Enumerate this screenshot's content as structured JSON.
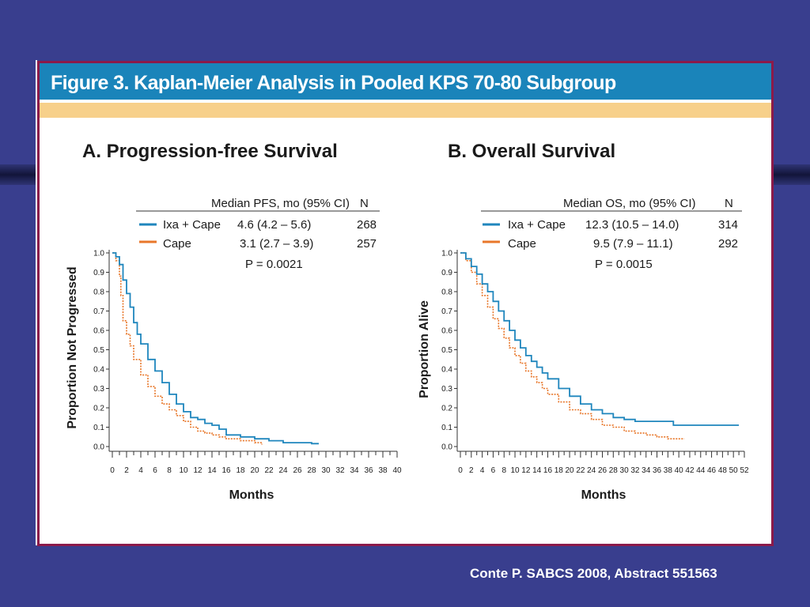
{
  "figure_title": "Figure 3. Kaplan-Meier Analysis in Pooled KPS 70-80 Subgroup",
  "footer": "Conte P. SABCS 2008, Abstract 551563",
  "colors": {
    "ixa": "#1f86bd",
    "cape": "#e8772a",
    "header": "#1a84ba",
    "stripe": "#f7d08a",
    "border": "#8b1a4a",
    "background": "#393e8e"
  },
  "chart_data": [
    {
      "type": "line",
      "title": "A. Progression-free Survival",
      "xlabel": "Months",
      "ylabel": "Proportion Not Progressed",
      "xlim": [
        0,
        40
      ],
      "ylim": [
        0,
        1.0
      ],
      "x_ticks": [
        0,
        2,
        4,
        6,
        8,
        10,
        12,
        14,
        16,
        18,
        20,
        22,
        24,
        26,
        28,
        30,
        32,
        34,
        36,
        38,
        40
      ],
      "y_ticks": [
        "0.0",
        "0.1",
        "0.2",
        "0.3",
        "0.4",
        "0.5",
        "0.6",
        "0.7",
        "0.8",
        "0.9",
        "1.0"
      ],
      "legend": {
        "header": {
          "measure": "Median PFS, mo (95% CI)",
          "n": "N"
        },
        "rows": [
          {
            "name": "Ixa + Cape",
            "median": "4.6 (4.2 – 5.6)",
            "n": "268",
            "color": "#1f86bd"
          },
          {
            "name": "Cape",
            "median": "3.1 (2.7 – 3.9)",
            "n": "257",
            "color": "#e8772a"
          }
        ],
        "p_value": "P = 0.0021"
      },
      "series": [
        {
          "name": "Ixa + Cape",
          "style": "solid",
          "x": [
            0,
            0.5,
            1,
            1.5,
            2,
            2.5,
            3,
            3.5,
            4,
            5,
            6,
            7,
            8,
            9,
            10,
            11,
            12,
            13,
            14,
            15,
            16,
            18,
            20,
            22,
            24,
            26,
            28,
            29
          ],
          "y": [
            1.0,
            0.98,
            0.94,
            0.86,
            0.79,
            0.72,
            0.64,
            0.58,
            0.53,
            0.45,
            0.39,
            0.33,
            0.27,
            0.22,
            0.18,
            0.15,
            0.14,
            0.12,
            0.11,
            0.09,
            0.06,
            0.05,
            0.04,
            0.03,
            0.02,
            0.02,
            0.015,
            0.015
          ]
        },
        {
          "name": "Cape",
          "style": "dotted",
          "x": [
            0,
            0.5,
            1,
            1.2,
            1.5,
            2,
            2.5,
            3,
            4,
            5,
            6,
            7,
            8,
            9,
            10,
            11,
            12,
            13,
            14,
            15,
            16,
            18,
            20,
            21
          ],
          "y": [
            1.0,
            0.96,
            0.88,
            0.78,
            0.65,
            0.58,
            0.52,
            0.45,
            0.37,
            0.31,
            0.26,
            0.22,
            0.19,
            0.16,
            0.13,
            0.1,
            0.08,
            0.07,
            0.06,
            0.05,
            0.04,
            0.03,
            0.02,
            0.01
          ]
        }
      ]
    },
    {
      "type": "line",
      "title": "B. Overall Survival",
      "xlabel": "Months",
      "ylabel": "Proportion Alive",
      "xlim": [
        0,
        52
      ],
      "ylim": [
        0,
        1.0
      ],
      "x_ticks": [
        0,
        2,
        4,
        6,
        8,
        10,
        12,
        14,
        16,
        18,
        20,
        22,
        24,
        26,
        28,
        30,
        32,
        34,
        36,
        38,
        40,
        42,
        44,
        46,
        48,
        50,
        52
      ],
      "y_ticks": [
        "0.0",
        "0.1",
        "0.2",
        "0.3",
        "0.4",
        "0.5",
        "0.6",
        "0.7",
        "0.8",
        "0.9",
        "1.0"
      ],
      "legend": {
        "header": {
          "measure": "Median OS, mo (95% CI)",
          "n": "N"
        },
        "rows": [
          {
            "name": "Ixa + Cape",
            "median": "12.3 (10.5 – 14.0)",
            "n": "314",
            "color": "#1f86bd"
          },
          {
            "name": "Cape",
            "median": "9.5 (7.9 – 11.1)",
            "n": "292",
            "color": "#e8772a"
          }
        ],
        "p_value": "P = 0.0015"
      },
      "series": [
        {
          "name": "Ixa + Cape",
          "style": "solid",
          "x": [
            0,
            1,
            2,
            3,
            4,
            5,
            6,
            7,
            8,
            9,
            10,
            11,
            12,
            13,
            14,
            15,
            16,
            18,
            20,
            22,
            24,
            26,
            28,
            30,
            32,
            34,
            36,
            38,
            39,
            40,
            44,
            48,
            51
          ],
          "y": [
            1.0,
            0.97,
            0.93,
            0.89,
            0.84,
            0.8,
            0.75,
            0.7,
            0.65,
            0.6,
            0.55,
            0.51,
            0.47,
            0.44,
            0.41,
            0.38,
            0.35,
            0.3,
            0.26,
            0.22,
            0.19,
            0.17,
            0.15,
            0.14,
            0.13,
            0.13,
            0.13,
            0.13,
            0.11,
            0.11,
            0.11,
            0.11,
            0.11
          ]
        },
        {
          "name": "Cape",
          "style": "dotted",
          "x": [
            0,
            1,
            2,
            3,
            4,
            5,
            6,
            7,
            8,
            9,
            10,
            11,
            12,
            13,
            14,
            15,
            16,
            18,
            20,
            22,
            24,
            26,
            28,
            30,
            32,
            34,
            36,
            38,
            40,
            41
          ],
          "y": [
            1.0,
            0.96,
            0.9,
            0.84,
            0.78,
            0.72,
            0.66,
            0.61,
            0.56,
            0.51,
            0.47,
            0.43,
            0.39,
            0.36,
            0.33,
            0.3,
            0.27,
            0.23,
            0.19,
            0.17,
            0.14,
            0.11,
            0.1,
            0.08,
            0.07,
            0.06,
            0.05,
            0.04,
            0.04,
            0.04
          ]
        }
      ]
    }
  ]
}
